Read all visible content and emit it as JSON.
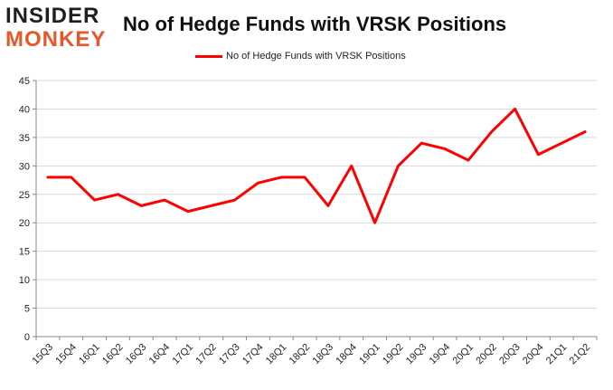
{
  "logo": {
    "line1": "INSIDER",
    "line2": "MONKEY"
  },
  "chart_data": {
    "type": "line",
    "title": "No of Hedge Funds with VRSK Positions",
    "xlabel": "",
    "ylabel": "",
    "categories": [
      "15Q3",
      "15Q4",
      "16Q1",
      "16Q2",
      "16Q3",
      "16Q4",
      "17Q1",
      "17Q2",
      "17Q3",
      "17Q4",
      "18Q1",
      "18Q2",
      "18Q3",
      "18Q4",
      "19Q1",
      "19Q2",
      "19Q3",
      "19Q4",
      "20Q1",
      "20Q2",
      "20Q3",
      "20Q4",
      "21Q1",
      "21Q2"
    ],
    "series": [
      {
        "name": "No of Hedge Funds with VRSK Positions",
        "color": "#ff0000",
        "values": [
          28,
          28,
          24,
          25,
          23,
          24,
          22,
          23,
          24,
          27,
          28,
          28,
          23,
          30,
          20,
          30,
          34,
          33,
          31,
          36,
          40,
          32,
          34,
          36
        ]
      }
    ],
    "ylim": [
      0,
      45
    ],
    "yticks": [
      0,
      5,
      10,
      15,
      20,
      25,
      30,
      35,
      40,
      45
    ],
    "grid": true,
    "legend": "top-center"
  }
}
